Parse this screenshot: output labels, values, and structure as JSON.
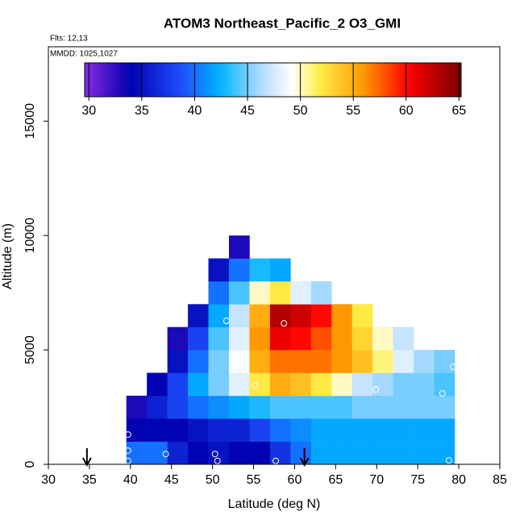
{
  "chart_data": {
    "type": "heatmap",
    "title": "ATOM3 Northeast_Pacific_2 O3_GMI",
    "notes": [
      "Flts: 12,13",
      "MMDD: 1025,1027"
    ],
    "xlabel": "Latitude (deg N)",
    "ylabel": "Altitude (m)",
    "xlim": [
      30,
      85
    ],
    "xticks": [
      30,
      35,
      40,
      45,
      50,
      55,
      60,
      65,
      70,
      75,
      80,
      85
    ],
    "ylim": [
      0,
      18250
    ],
    "yticks": [
      0,
      5000,
      10000,
      15000
    ],
    "colorbar_lim": [
      29.6,
      65.2
    ],
    "colorbar_ticks": [
      30,
      35,
      40,
      45,
      50,
      55,
      60,
      65
    ],
    "x_bins": [
      39.5,
      42,
      44.5,
      47,
      49.5,
      52,
      54.5,
      57,
      59.5,
      62,
      64.5,
      67,
      69.5,
      72,
      74.5,
      77,
      79.5
    ],
    "y_bins": [
      0,
      1000,
      2000,
      3000,
      4000,
      5000,
      6000,
      7000,
      8000,
      9000,
      10000
    ],
    "z": [
      [
        40,
        40,
        36,
        34,
        35,
        34,
        34,
        37,
        40,
        42,
        42,
        42,
        42,
        42,
        42,
        42
      ],
      [
        34,
        34,
        34,
        35,
        36,
        36,
        38,
        40,
        41,
        42,
        42,
        42,
        42,
        42,
        42,
        42
      ],
      [
        33,
        36,
        38,
        40,
        41,
        42,
        43,
        44,
        44,
        44,
        44,
        45,
        45,
        45,
        45,
        45
      ],
      [
        null,
        34,
        38,
        42,
        45,
        48,
        52,
        55,
        54,
        52,
        50,
        47,
        46,
        45,
        45,
        44
      ],
      [
        null,
        null,
        35,
        40,
        45,
        49,
        55,
        57,
        57,
        57,
        56,
        54,
        51,
        48,
        46,
        45
      ],
      [
        null,
        null,
        33,
        38,
        44,
        48,
        56,
        61,
        60,
        58,
        56,
        53,
        50,
        47,
        null,
        null
      ],
      [
        null,
        null,
        null,
        35,
        42,
        47,
        55,
        63,
        62,
        60,
        56,
        52,
        null,
        null,
        null,
        null
      ],
      [
        null,
        null,
        null,
        null,
        40,
        44,
        50,
        52,
        48,
        46,
        null,
        null,
        null,
        null,
        null,
        null
      ],
      [
        null,
        null,
        null,
        null,
        35,
        40,
        43,
        42,
        null,
        null,
        null,
        null,
        null,
        null,
        null,
        null
      ],
      [
        null,
        null,
        null,
        null,
        null,
        33,
        null,
        null,
        null,
        null,
        null,
        null,
        null,
        null,
        null,
        null
      ]
    ],
    "flight_points": {
      "x": [
        39.7,
        39.7,
        39.7,
        44.3,
        50.3,
        50.6,
        57.7,
        53.1,
        51.7,
        58.7,
        55.2,
        69.9,
        78.0,
        78.8,
        79.3
      ],
      "y": [
        1300,
        600,
        150,
        450,
        450,
        150,
        150,
        10350,
        6270,
        6160,
        3450,
        3270,
        3100,
        170,
        4260
      ]
    },
    "arrows": [
      34.7,
      61.2
    ]
  }
}
